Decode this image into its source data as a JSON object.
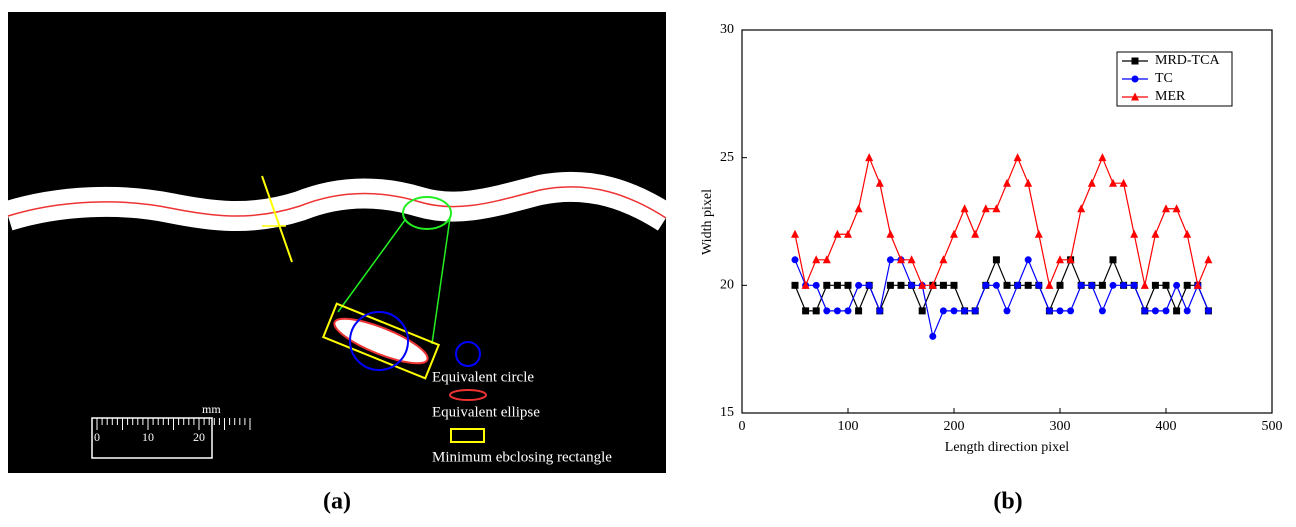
{
  "panel_a": {
    "label": "(a)",
    "scale_unit": "mm",
    "scale_ticks": [
      "0",
      "10",
      "20"
    ],
    "legend": [
      "Equivalent circle",
      "Equivalent ellipse",
      "Minimum ebclosing rectangle"
    ]
  },
  "chart_data": {
    "type": "line",
    "panel_label": "(b)",
    "x_label": "Length direction pixel",
    "y_label": "Width pixel",
    "x": [
      50,
      60,
      70,
      80,
      90,
      100,
      110,
      120,
      130,
      140,
      150,
      160,
      170,
      180,
      190,
      200,
      210,
      220,
      230,
      240,
      250,
      260,
      270,
      280,
      290,
      300,
      310,
      320,
      330,
      340,
      350,
      360,
      370,
      380,
      390,
      400,
      410,
      420,
      430,
      440
    ],
    "series": [
      {
        "name": "MRD-TCA",
        "color": "#000000",
        "marker": "square",
        "values": [
          20,
          19,
          19,
          20,
          20,
          20,
          19,
          20,
          19,
          20,
          20,
          20,
          19,
          20,
          20,
          20,
          19,
          19,
          20,
          21,
          20,
          20,
          20,
          20,
          19,
          20,
          21,
          20,
          20,
          20,
          21,
          20,
          20,
          19,
          20,
          20,
          19,
          20,
          20,
          19
        ]
      },
      {
        "name": "TC",
        "color": "#0000ff",
        "marker": "circle",
        "values": [
          21,
          20,
          20,
          19,
          19,
          19,
          20,
          20,
          19,
          21,
          21,
          20,
          20,
          18,
          19,
          19,
          19,
          19,
          20,
          20,
          19,
          20,
          21,
          20,
          19,
          19,
          19,
          20,
          20,
          19,
          20,
          20,
          20,
          19,
          19,
          19,
          20,
          19,
          20,
          19
        ]
      },
      {
        "name": "MER",
        "color": "#ff0000",
        "marker": "triangle",
        "values": [
          22,
          20,
          21,
          21,
          22,
          22,
          23,
          25,
          24,
          22,
          21,
          21,
          20,
          20,
          21,
          22,
          23,
          22,
          23,
          23,
          24,
          25,
          24,
          22,
          20,
          21,
          21,
          23,
          24,
          25,
          24,
          24,
          22,
          20,
          22,
          23,
          23,
          22,
          20,
          21
        ]
      }
    ],
    "xlim": [
      0,
      500
    ],
    "ylim": [
      15,
      30
    ],
    "xticks": [
      0,
      100,
      200,
      300,
      400,
      500
    ],
    "yticks": [
      15,
      20,
      25,
      30
    ],
    "legend_position": "upper right"
  }
}
